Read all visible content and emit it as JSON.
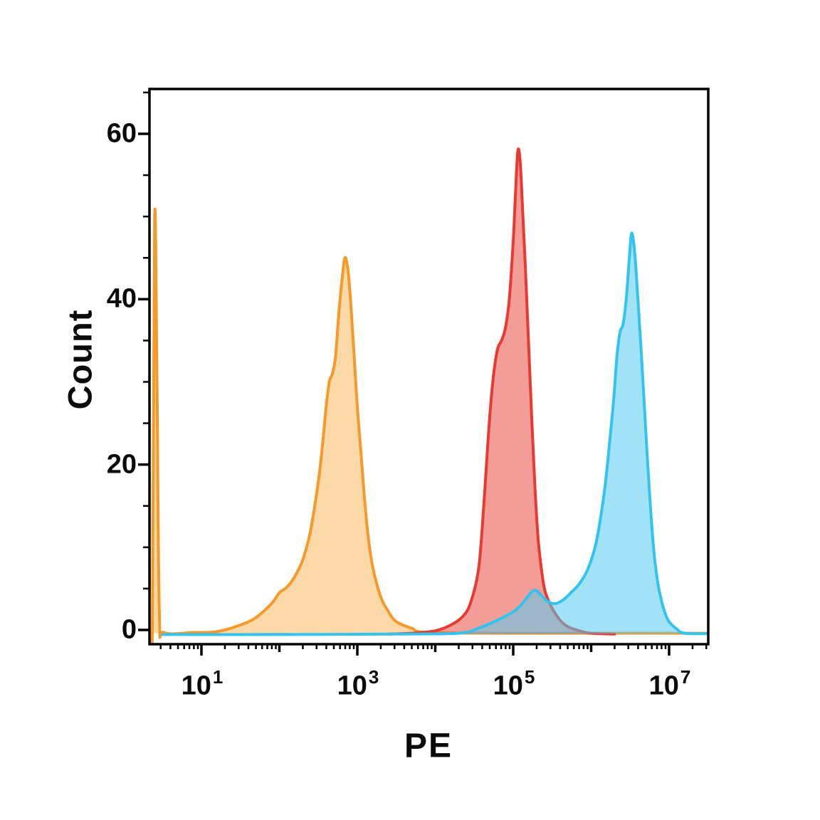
{
  "chart_data": {
    "type": "area",
    "subtype": "flow-cytometry-histogram",
    "title": "",
    "xlabel": "PE",
    "ylabel": "Count",
    "x_scale": "log10",
    "x_range_exponents": [
      0.33,
      7.52
    ],
    "ylim": [
      0,
      60
    ],
    "grid": false,
    "legend": "none",
    "axis_color": "#000000",
    "background": "#ffffff",
    "y_ticks": [
      {
        "value": 0,
        "label": "0"
      },
      {
        "value": 20,
        "label": "20"
      },
      {
        "value": 40,
        "label": "40"
      },
      {
        "value": 60,
        "label": "60"
      }
    ],
    "y_minor_step": 5,
    "x_major_ticks": [
      {
        "exponent": 1,
        "base": "10",
        "sup": "1"
      },
      {
        "exponent": 3,
        "base": "10",
        "sup": "3"
      },
      {
        "exponent": 5,
        "base": "10",
        "sup": "5"
      },
      {
        "exponent": 7,
        "base": "10",
        "sup": "7"
      }
    ],
    "series": [
      {
        "name": "orange-population",
        "color": "#F59A28",
        "fill": "#F6A93F",
        "fill_opacity": 0.45,
        "peak": {
          "x_exponent": 2.85,
          "count": 45
        },
        "points": [
          [
            0.33,
            -0.4
          ],
          [
            0.37,
            -0.2
          ],
          [
            0.4,
            50
          ],
          [
            0.43,
            30
          ],
          [
            0.46,
            2
          ],
          [
            0.52,
            -0.3
          ],
          [
            0.9,
            -0.3
          ],
          [
            1.2,
            -0.2
          ],
          [
            1.5,
            0.6
          ],
          [
            1.7,
            1.5
          ],
          [
            1.9,
            3.2
          ],
          [
            2.0,
            4.5
          ],
          [
            2.1,
            5.2
          ],
          [
            2.2,
            6.5
          ],
          [
            2.3,
            8.5
          ],
          [
            2.4,
            12
          ],
          [
            2.5,
            18
          ],
          [
            2.56,
            23
          ],
          [
            2.6,
            27
          ],
          [
            2.64,
            30
          ],
          [
            2.68,
            31
          ],
          [
            2.72,
            33
          ],
          [
            2.76,
            38
          ],
          [
            2.8,
            42
          ],
          [
            2.84,
            45
          ],
          [
            2.88,
            43.5
          ],
          [
            2.92,
            39
          ],
          [
            2.96,
            33
          ],
          [
            3.0,
            27
          ],
          [
            3.05,
            21
          ],
          [
            3.1,
            15
          ],
          [
            3.15,
            10.5
          ],
          [
            3.2,
            7.5
          ],
          [
            3.3,
            4
          ],
          [
            3.4,
            2.2
          ],
          [
            3.5,
            1
          ],
          [
            3.7,
            0.2
          ],
          [
            3.9,
            -0.3
          ],
          [
            5.0,
            -0.4
          ],
          [
            7.5,
            -0.4
          ]
        ]
      },
      {
        "name": "red-population",
        "color": "#E93A32",
        "fill": "#E94C44",
        "fill_opacity": 0.55,
        "peak": {
          "x_exponent": 5.06,
          "count": 58
        },
        "points": [
          [
            3.4,
            -0.5
          ],
          [
            3.7,
            -0.4
          ],
          [
            4.0,
            -0.1
          ],
          [
            4.2,
            0.6
          ],
          [
            4.35,
            1.6
          ],
          [
            4.45,
            3.2
          ],
          [
            4.55,
            7
          ],
          [
            4.6,
            12
          ],
          [
            4.65,
            19
          ],
          [
            4.7,
            26
          ],
          [
            4.75,
            31
          ],
          [
            4.8,
            34
          ],
          [
            4.85,
            35
          ],
          [
            4.9,
            36.5
          ],
          [
            4.95,
            40
          ],
          [
            5.0,
            47
          ],
          [
            5.03,
            53
          ],
          [
            5.06,
            58
          ],
          [
            5.09,
            56.5
          ],
          [
            5.12,
            51
          ],
          [
            5.16,
            43
          ],
          [
            5.2,
            34
          ],
          [
            5.24,
            25
          ],
          [
            5.28,
            17
          ],
          [
            5.32,
            11
          ],
          [
            5.36,
            7.5
          ],
          [
            5.4,
            5
          ],
          [
            5.45,
            3.6
          ],
          [
            5.5,
            2.6
          ],
          [
            5.6,
            1.2
          ],
          [
            5.7,
            0.4
          ],
          [
            5.85,
            -0.1
          ],
          [
            6.0,
            -0.4
          ],
          [
            6.3,
            -0.5
          ]
        ]
      },
      {
        "name": "cyan-population",
        "color": "#33C3EF",
        "fill": "#56CBF0",
        "fill_opacity": 0.55,
        "peak": {
          "x_exponent": 6.52,
          "count": 48
        },
        "points": [
          [
            0.5,
            -0.55
          ],
          [
            2.0,
            -0.55
          ],
          [
            3.5,
            -0.5
          ],
          [
            4.3,
            -0.4
          ],
          [
            4.55,
            0.2
          ],
          [
            4.8,
            1.2
          ],
          [
            5.0,
            2.2
          ],
          [
            5.1,
            3
          ],
          [
            5.2,
            4.2
          ],
          [
            5.28,
            4.8
          ],
          [
            5.36,
            4.2
          ],
          [
            5.45,
            3.4
          ],
          [
            5.55,
            3.2
          ],
          [
            5.65,
            3.7
          ],
          [
            5.75,
            4.6
          ],
          [
            5.85,
            5.6
          ],
          [
            5.95,
            7.2
          ],
          [
            6.05,
            10
          ],
          [
            6.12,
            13.5
          ],
          [
            6.18,
            17.5
          ],
          [
            6.24,
            23
          ],
          [
            6.29,
            28
          ],
          [
            6.33,
            33
          ],
          [
            6.37,
            36
          ],
          [
            6.41,
            37
          ],
          [
            6.45,
            40
          ],
          [
            6.49,
            45
          ],
          [
            6.52,
            48
          ],
          [
            6.56,
            45.5
          ],
          [
            6.6,
            40
          ],
          [
            6.64,
            34
          ],
          [
            6.68,
            27.5
          ],
          [
            6.72,
            21
          ],
          [
            6.76,
            15
          ],
          [
            6.8,
            10
          ],
          [
            6.85,
            6
          ],
          [
            6.9,
            3.6
          ],
          [
            6.95,
            2
          ],
          [
            7.0,
            1
          ],
          [
            7.1,
            0.1
          ],
          [
            7.2,
            -0.4
          ],
          [
            7.5,
            -0.45
          ]
        ]
      }
    ]
  }
}
